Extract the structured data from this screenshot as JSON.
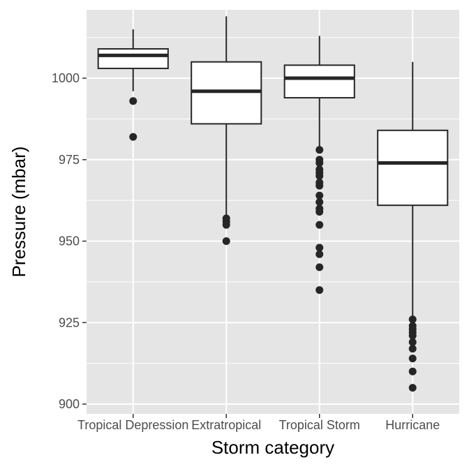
{
  "chart_data": {
    "type": "boxplot",
    "xlabel": "Storm category",
    "ylabel": "Pressure (mbar)",
    "ylim": [
      897,
      1021
    ],
    "yticks": [
      900,
      925,
      950,
      975,
      1000
    ],
    "grid": true,
    "categories": [
      "Tropical Depression",
      "Extratropical",
      "Tropical Storm",
      "Hurricane"
    ],
    "boxes": [
      {
        "name": "Tropical Depression",
        "whisker_low": 996,
        "q1": 1003,
        "median": 1007,
        "q3": 1009,
        "whisker_high": 1015,
        "outliers": [
          993,
          982
        ]
      },
      {
        "name": "Extratropical",
        "whisker_low": 958,
        "q1": 986,
        "median": 996,
        "q3": 1005,
        "whisker_high": 1019,
        "outliers": [
          957,
          956,
          955,
          950
        ]
      },
      {
        "name": "Tropical Storm",
        "whisker_low": 979,
        "q1": 994,
        "median": 1000,
        "q3": 1004,
        "whisker_high": 1013,
        "outliers": [
          978,
          975,
          974,
          972,
          971,
          970,
          968,
          967,
          964,
          962,
          960,
          959,
          955,
          948,
          946,
          942,
          935
        ]
      },
      {
        "name": "Hurricane",
        "whisker_low": 927,
        "q1": 961,
        "median": 974,
        "q3": 984,
        "whisker_high": 1005,
        "outliers": [
          926,
          924,
          923,
          922,
          921,
          919,
          917,
          914,
          910,
          905
        ]
      }
    ],
    "colors": {
      "panel": "#e5e5e5",
      "grid": "#ffffff",
      "box_fill": "#ffffff",
      "line": "#262626",
      "tick_text": "#4d4d4d",
      "title_text": "#000000"
    }
  }
}
